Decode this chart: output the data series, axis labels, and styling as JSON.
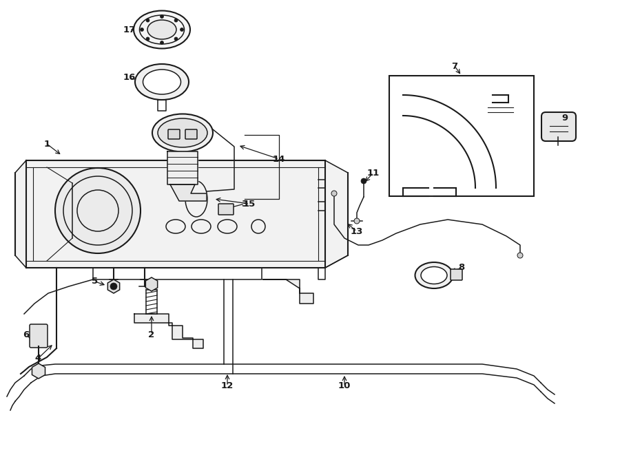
{
  "bg_color": "#ffffff",
  "line_color": "#1a1a1a",
  "figsize": [
    9.0,
    6.61
  ],
  "dpi": 100,
  "xlim": [
    0,
    9.0
  ],
  "ylim": [
    0,
    6.61
  ]
}
